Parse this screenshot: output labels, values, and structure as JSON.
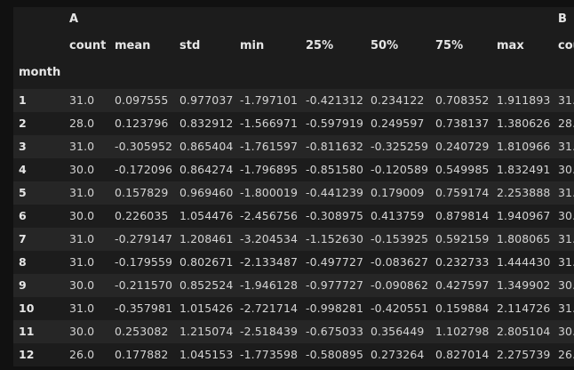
{
  "table": {
    "group_headers": [
      "A",
      "B"
    ],
    "columns": [
      "count",
      "mean",
      "std",
      "min",
      "25%",
      "50%",
      "75%",
      "max"
    ],
    "next_group_first_col_partial": "cou",
    "index_name": "month",
    "rows": [
      {
        "idx": "1",
        "values": [
          "31.0",
          "0.097555",
          "0.977037",
          "-1.797101",
          "-0.421312",
          "0.234122",
          "0.708352",
          "1.911893"
        ],
        "partial": "31."
      },
      {
        "idx": "2",
        "values": [
          "28.0",
          "0.123796",
          "0.832912",
          "-1.566971",
          "-0.597919",
          "0.249597",
          "0.738137",
          "1.380626"
        ],
        "partial": "28."
      },
      {
        "idx": "3",
        "values": [
          "31.0",
          "-0.305952",
          "0.865404",
          "-1.761597",
          "-0.811632",
          "-0.325259",
          "0.240729",
          "1.810966"
        ],
        "partial": "31."
      },
      {
        "idx": "4",
        "values": [
          "30.0",
          "-0.172096",
          "0.864274",
          "-1.796895",
          "-0.851580",
          "-0.120589",
          "0.549985",
          "1.832491"
        ],
        "partial": "30."
      },
      {
        "idx": "5",
        "values": [
          "31.0",
          "0.157829",
          "0.969460",
          "-1.800019",
          "-0.441239",
          "0.179009",
          "0.759174",
          "2.253888"
        ],
        "partial": "31."
      },
      {
        "idx": "6",
        "values": [
          "30.0",
          "0.226035",
          "1.054476",
          "-2.456756",
          "-0.308975",
          "0.413759",
          "0.879814",
          "1.940967"
        ],
        "partial": "30."
      },
      {
        "idx": "7",
        "values": [
          "31.0",
          "-0.279147",
          "1.208461",
          "-3.204534",
          "-1.152630",
          "-0.153925",
          "0.592159",
          "1.808065"
        ],
        "partial": "31."
      },
      {
        "idx": "8",
        "values": [
          "31.0",
          "-0.179559",
          "0.802671",
          "-2.133487",
          "-0.497727",
          "-0.083627",
          "0.232733",
          "1.444430"
        ],
        "partial": "31."
      },
      {
        "idx": "9",
        "values": [
          "30.0",
          "-0.211570",
          "0.852524",
          "-1.946128",
          "-0.977727",
          "-0.090862",
          "0.427597",
          "1.349902"
        ],
        "partial": "30."
      },
      {
        "idx": "10",
        "values": [
          "31.0",
          "-0.357981",
          "1.015426",
          "-2.721714",
          "-0.998281",
          "-0.420551",
          "0.159884",
          "2.114726"
        ],
        "partial": "31."
      },
      {
        "idx": "11",
        "values": [
          "30.0",
          "0.253082",
          "1.215074",
          "-2.518439",
          "-0.675033",
          "0.356449",
          "1.102798",
          "2.805104"
        ],
        "partial": "30."
      },
      {
        "idx": "12",
        "values": [
          "26.0",
          "0.177882",
          "1.045153",
          "-1.773598",
          "-0.580895",
          "0.273264",
          "0.827014",
          "2.275739"
        ],
        "partial": "26."
      }
    ]
  },
  "colors": {
    "background": "#111111",
    "row_light": "#262626",
    "row_dark": "#1c1c1c",
    "text": "#d4d4d4",
    "header_text": "#e6e6e6"
  }
}
